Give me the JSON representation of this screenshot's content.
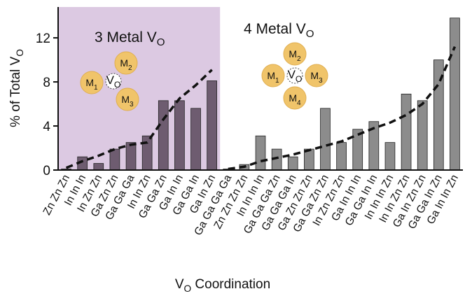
{
  "chart_data": {
    "type": "bar",
    "ylabel": {
      "text": "% of Total V",
      "sub": "O"
    },
    "xlabel": {
      "text": "V",
      "sub": "O",
      "rest": " Coordination"
    },
    "ylim": [
      0,
      14.8
    ],
    "yticks": [
      0,
      4,
      8,
      12
    ],
    "groups": [
      {
        "title": {
          "text": "3 Metal V",
          "sub": "O"
        },
        "background": "#dcc9e2",
        "color": "#6e5c70",
        "categories": [
          "Zn Zn Zn",
          "In In In",
          "In Zn Zn",
          "Ga Zn Zn",
          "Ga Ga Ga",
          "In In Zn",
          "Ga Ga Zn",
          "Ga In In",
          "Ga Ga In",
          "Ga In Zn"
        ],
        "values": [
          0.1,
          1.2,
          0.6,
          1.9,
          2.5,
          3.1,
          6.3,
          6.3,
          5.6,
          8.1
        ],
        "trend": [
          0.2,
          0.8,
          1.3,
          1.9,
          2.3,
          2.5,
          4.6,
          6.5,
          7.7,
          9.1
        ],
        "diagram": {
          "center": {
            "text": "V",
            "sub": "O"
          },
          "nodes": [
            {
              "text": "M",
              "sub": "1"
            },
            {
              "text": "M",
              "sub": "2"
            },
            {
              "text": "M",
              "sub": "3"
            }
          ]
        }
      },
      {
        "title": {
          "text": "4 Metal V",
          "sub": "O"
        },
        "background": null,
        "color": "#8c8c8c",
        "categories": [
          "Ga Ga Ga Ga",
          "Zn Zn Zn Zn",
          "In In In In",
          "Ga Ga Ga Zn",
          "Ga Ga Ga In",
          "Ga Zn Zn Zn",
          "Ga Ga Zn Zn",
          "In Zn Zn Zn",
          "Ga In In In",
          "Ga Ga In In",
          "In In In Zn",
          "In In Zn Zn",
          "Ga In Zn Zn",
          "Ga Ga In Zn",
          "Ga In In Zn"
        ],
        "values": [
          0.1,
          0.5,
          3.1,
          1.9,
          1.2,
          1.9,
          5.6,
          2.5,
          3.7,
          4.4,
          2.5,
          6.9,
          6.3,
          10,
          13.8
        ],
        "trend": [
          0.1,
          0.3,
          0.8,
          1.1,
          1.4,
          1.8,
          2.2,
          2.6,
          3.2,
          3.8,
          4.3,
          5.0,
          6.0,
          7.8,
          11.2
        ],
        "diagram": {
          "center": {
            "text": "V",
            "sub": "O"
          },
          "nodes": [
            {
              "text": "M",
              "sub": "1"
            },
            {
              "text": "M",
              "sub": "2"
            },
            {
              "text": "M",
              "sub": "3"
            },
            {
              "text": "M",
              "sub": "4"
            }
          ]
        }
      }
    ]
  }
}
